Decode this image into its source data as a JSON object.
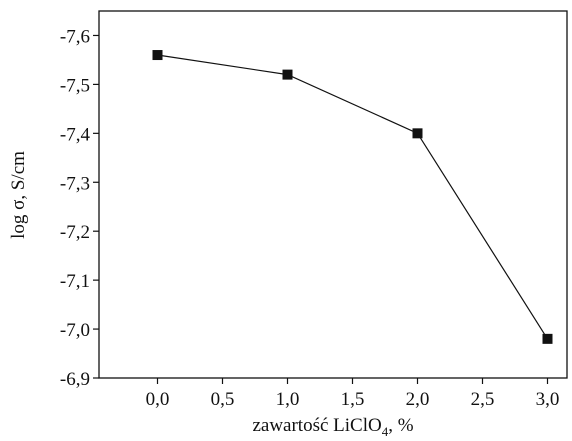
{
  "chart_data": {
    "type": "line",
    "xlabel_main": "zawartość LiClO",
    "xlabel_subscript": "4",
    "xlabel_suffix": ", %",
    "ylabel": "log σ, S/cm",
    "xlim": [
      -0.45,
      3.15
    ],
    "ylim": [
      -6.9,
      -7.65
    ],
    "y_axis_inverted": true,
    "x_ticks": [
      {
        "value": 0.0,
        "label": "0,0"
      },
      {
        "value": 0.5,
        "label": "0,5"
      },
      {
        "value": 1.0,
        "label": "1,0"
      },
      {
        "value": 1.5,
        "label": "1,5"
      },
      {
        "value": 2.0,
        "label": "2,0"
      },
      {
        "value": 2.5,
        "label": "2,5"
      },
      {
        "value": 3.0,
        "label": "3,0"
      }
    ],
    "y_ticks": [
      {
        "value": -7.6,
        "label": "-7,6"
      },
      {
        "value": -7.5,
        "label": "-7,5"
      },
      {
        "value": -7.4,
        "label": "-7,4"
      },
      {
        "value": -7.3,
        "label": "-7,3"
      },
      {
        "value": -7.2,
        "label": "-7,2"
      },
      {
        "value": -7.1,
        "label": "-7,1"
      },
      {
        "value": -7.0,
        "label": "-7,0"
      },
      {
        "value": -6.9,
        "label": "-6,9"
      }
    ],
    "series": [
      {
        "marker": "square",
        "color": "#111111",
        "x": [
          0.0,
          1.0,
          2.0,
          3.0
        ],
        "y": [
          -7.56,
          -7.52,
          -7.4,
          -6.98
        ]
      }
    ],
    "grid": false,
    "legend": "none"
  }
}
